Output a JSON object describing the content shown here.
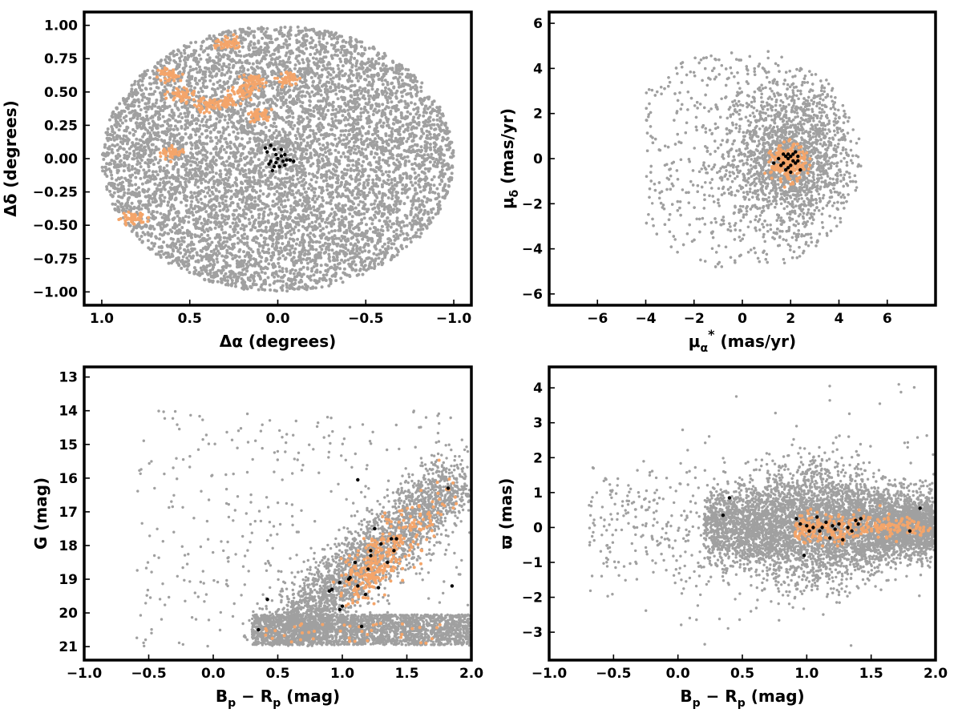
{
  "colors": {
    "field": "#a0a0a0",
    "candidate": "#f4a56a",
    "member": "#000000"
  },
  "chart_data": [
    {
      "id": "sky",
      "type": "scatter",
      "title": "",
      "xlabel": "Δα (degrees)",
      "ylabel": "Δδ (degrees)",
      "xlim": [
        1.1,
        -1.1
      ],
      "ylim": [
        -1.1,
        1.1
      ],
      "xticks": [
        1.0,
        0.5,
        0.0,
        -0.5,
        -1.0
      ],
      "xtick_labels": [
        "1.0",
        "0.5",
        "0.0",
        "−0.5",
        "−1.0"
      ],
      "yticks": [
        1.0,
        0.75,
        0.5,
        0.25,
        0.0,
        -0.25,
        -0.5,
        -0.75,
        -1.0
      ],
      "ytick_labels": [
        "1.00",
        "0.75",
        "0.50",
        "0.25",
        "0.00",
        "−0.25",
        "−0.50",
        "−0.75",
        "−1.00"
      ],
      "grid": false,
      "series": [
        {
          "role": "field",
          "distribution": "uniform disk of radius 1.0 deg centred at (0,0)"
        },
        {
          "role": "candidate",
          "clumps": [
            {
              "x": 0.62,
              "y": 0.63
            },
            {
              "x": 0.55,
              "y": 0.47
            },
            {
              "x": 0.4,
              "y": 0.4
            },
            {
              "x": 0.3,
              "y": 0.43
            },
            {
              "x": 0.2,
              "y": 0.5
            },
            {
              "x": 0.13,
              "y": 0.58
            },
            {
              "x": -0.05,
              "y": 0.6
            },
            {
              "x": 0.28,
              "y": 0.87
            },
            {
              "x": 0.6,
              "y": 0.05
            },
            {
              "x": 0.82,
              "y": -0.45
            },
            {
              "x": 0.1,
              "y": 0.33
            }
          ]
        },
        {
          "role": "member",
          "points": [
            [
              0.07,
              0.08
            ],
            [
              0.04,
              0.1
            ],
            [
              0.02,
              0.07
            ],
            [
              -0.02,
              0.07
            ],
            [
              -0.04,
              0.03
            ],
            [
              0.01,
              0.03
            ],
            [
              0.04,
              -0.02
            ],
            [
              0.01,
              -0.03
            ],
            [
              -0.03,
              -0.02
            ],
            [
              -0.07,
              -0.01
            ],
            [
              -0.09,
              -0.02
            ],
            [
              0.02,
              -0.06
            ],
            [
              -0.01,
              -0.06
            ],
            [
              -0.04,
              -0.05
            ],
            [
              -0.05,
              -0.01
            ],
            [
              0.05,
              -0.04
            ],
            [
              -0.02,
              0.02
            ],
            [
              0.03,
              -0.09
            ],
            [
              0.0,
              0.0
            ],
            [
              0.06,
              0.05
            ]
          ]
        }
      ]
    },
    {
      "id": "pm",
      "type": "scatter",
      "title": "",
      "xlabel": "μα* (mas/yr)",
      "ylabel": "μδ (mas/yr)",
      "xlim": [
        -8,
        8
      ],
      "ylim": [
        -6.5,
        6.5
      ],
      "xticks": [
        -6,
        -4,
        -2,
        0,
        2,
        4,
        6
      ],
      "xtick_labels": [
        "−6",
        "−4",
        "−2",
        "0",
        "2",
        "4",
        "6"
      ],
      "yticks": [
        6,
        4,
        2,
        0,
        -2,
        -4,
        -6
      ],
      "ytick_labels": [
        "6",
        "4",
        "2",
        "0",
        "−2",
        "−4",
        "−6"
      ],
      "grid": false,
      "series": [
        {
          "role": "field",
          "distribution": "concentrated near (2,0), within radius ~4.9 of (0,0)"
        },
        {
          "role": "candidate",
          "center": [
            1.9,
            -0.2
          ]
        },
        {
          "role": "member",
          "points": [
            [
              1.3,
              -0.2
            ],
            [
              1.6,
              -0.3
            ],
            [
              1.7,
              -0.2
            ],
            [
              1.8,
              0.1
            ],
            [
              1.9,
              0.2
            ],
            [
              2.0,
              0.1
            ],
            [
              2.1,
              0.2
            ],
            [
              2.2,
              -0.2
            ],
            [
              1.9,
              -0.4
            ],
            [
              2.0,
              -0.3
            ],
            [
              2.3,
              0.1
            ],
            [
              2.4,
              -0.5
            ],
            [
              1.5,
              0.0
            ],
            [
              2.1,
              -0.1
            ],
            [
              1.8,
              -0.5
            ],
            [
              2.2,
              0.3
            ],
            [
              1.9,
              0.0
            ],
            [
              2.0,
              -0.6
            ],
            [
              1.7,
              0.2
            ],
            [
              2.3,
              -0.1
            ]
          ]
        }
      ]
    },
    {
      "id": "cmd",
      "type": "scatter",
      "title": "",
      "xlabel": "Bp − Rp (mag)",
      "ylabel": "G (mag)",
      "xlim": [
        -1.0,
        2.0
      ],
      "ylim": [
        21.4,
        12.7
      ],
      "xticks": [
        -1.0,
        -0.5,
        0.0,
        0.5,
        1.0,
        1.5,
        2.0
      ],
      "xtick_labels": [
        "−1.0",
        "−0.5",
        "0.0",
        "0.5",
        "1.0",
        "1.5",
        "2.0"
      ],
      "yticks": [
        21,
        20,
        19,
        18,
        17,
        16,
        15,
        14,
        13
      ],
      "ytick_labels": [
        "21",
        "20",
        "19",
        "18",
        "17",
        "16",
        "15",
        "14",
        "13"
      ],
      "grid": false,
      "series": [
        {
          "role": "field",
          "distribution": "diagonal sequence from (0.5,20.8) to (1.9,16.0) plus faint band at G≈20.5"
        },
        {
          "role": "candidate",
          "distribution": "along sequence, densest near (1.15,19.0)"
        },
        {
          "role": "member",
          "points": [
            [
              0.35,
              20.5
            ],
            [
              0.42,
              19.6
            ],
            [
              0.9,
              19.35
            ],
            [
              0.92,
              19.3
            ],
            [
              0.98,
              19.9
            ],
            [
              1.0,
              19.8
            ],
            [
              0.98,
              19.1
            ],
            [
              1.05,
              19.0
            ],
            [
              1.06,
              18.95
            ],
            [
              1.1,
              18.5
            ],
            [
              1.12,
              19.2
            ],
            [
              1.15,
              20.4
            ],
            [
              1.18,
              19.45
            ],
            [
              1.2,
              18.7
            ],
            [
              1.22,
              18.15
            ],
            [
              1.22,
              18.3
            ],
            [
              1.25,
              17.5
            ],
            [
              1.28,
              19.25
            ],
            [
              1.35,
              18.5
            ],
            [
              1.38,
              17.8
            ],
            [
              1.4,
              18.15
            ],
            [
              1.42,
              17.8
            ],
            [
              1.12,
              16.05
            ],
            [
              1.82,
              16.3
            ],
            [
              1.85,
              19.2
            ],
            [
              1.3,
              17.95
            ]
          ]
        }
      ]
    },
    {
      "id": "parallax",
      "type": "scatter",
      "title": "",
      "xlabel": "Bp − Rp (mag)",
      "ylabel": "ϖ (mas)",
      "xlim": [
        -1.0,
        2.0
      ],
      "ylim": [
        -3.8,
        4.6
      ],
      "xticks": [
        -1.0,
        -0.5,
        0.0,
        0.5,
        1.0,
        1.5,
        2.0
      ],
      "xtick_labels": [
        "−1.0",
        "−0.5",
        "0.0",
        "0.5",
        "1.0",
        "1.5",
        "2.0"
      ],
      "yticks": [
        4,
        3,
        2,
        1,
        0,
        -1,
        -2,
        -3
      ],
      "ytick_labels": [
        "4",
        "3",
        "2",
        "1",
        "0",
        "−1",
        "−2",
        "−3"
      ],
      "grid": false,
      "series": [
        {
          "role": "field",
          "distribution": "horizontal band around ϖ≈0, widest near Bp−Rp≈1.0"
        },
        {
          "role": "candidate",
          "distribution": "around ϖ≈0 for Bp−Rp 0.9–2.0"
        },
        {
          "role": "member",
          "points": [
            [
              0.35,
              0.35
            ],
            [
              0.4,
              0.85
            ],
            [
              0.92,
              0.25
            ],
            [
              0.95,
              0.1
            ],
            [
              0.98,
              -0.8
            ],
            [
              1.0,
              0.05
            ],
            [
              1.02,
              -0.1
            ],
            [
              1.05,
              0.0
            ],
            [
              1.08,
              0.3
            ],
            [
              1.1,
              -0.1
            ],
            [
              1.12,
              0.0
            ],
            [
              1.15,
              0.15
            ],
            [
              1.18,
              -0.3
            ],
            [
              1.2,
              0.05
            ],
            [
              1.22,
              -0.05
            ],
            [
              1.25,
              0.1
            ],
            [
              1.28,
              -0.35
            ],
            [
              1.32,
              0.0
            ],
            [
              1.35,
              -0.1
            ],
            [
              1.38,
              0.2
            ],
            [
              1.4,
              0.1
            ],
            [
              1.42,
              0.25
            ],
            [
              1.8,
              -0.1
            ],
            [
              1.88,
              0.55
            ]
          ]
        }
      ]
    }
  ]
}
